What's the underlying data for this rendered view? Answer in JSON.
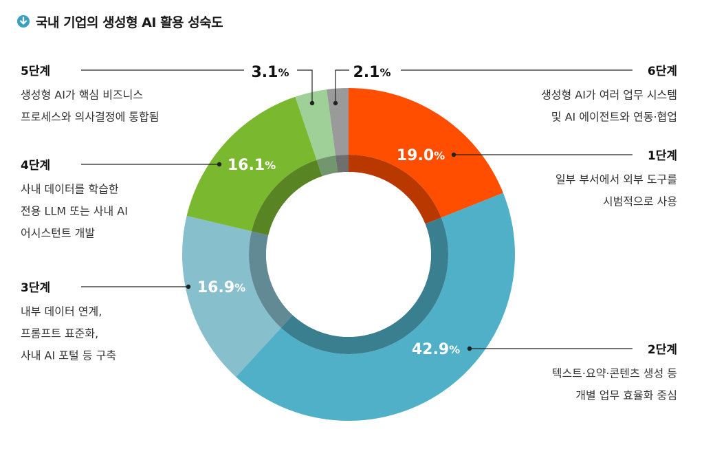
{
  "title": "국내 기업의 생성형 AI 활용 성숙도",
  "icon": "down-arrow-circle-icon",
  "colors": {
    "accent": "#3aa0c0",
    "stage1": "#ff4e00",
    "stage2": "#4fb0c8",
    "stage3": "#88bfcd",
    "stage4": "#7ab830",
    "stage5": "#9fd098",
    "stage6": "#9a9a9a"
  },
  "chart_data": {
    "type": "pie",
    "donut": true,
    "slices": [
      {
        "stage": "1단계",
        "value": 19.0,
        "pct_label": "19.0",
        "desc": [
          "일부 부서에서 외부 도구를",
          "시범적으로 사용"
        ]
      },
      {
        "stage": "2단계",
        "value": 42.9,
        "pct_label": "42.9",
        "desc": [
          "텍스트·요약·콘텐츠 생성 등",
          "개별 업무 효율화 중심"
        ]
      },
      {
        "stage": "3단계",
        "value": 16.9,
        "pct_label": "16.9",
        "desc": [
          "내부 데이터 연계,",
          "프롬프트 표준화,",
          "사내 AI 포털 등 구축"
        ]
      },
      {
        "stage": "4단계",
        "value": 16.1,
        "pct_label": "16.1",
        "desc": [
          "사내 데이터를 학습한",
          "전용 LLM 또는 사내 AI",
          "어시스턴트 개발"
        ]
      },
      {
        "stage": "5단계",
        "value": 3.1,
        "pct_label": "3.1",
        "desc": [
          "생성형 AI가 핵심 비즈니스",
          "프로세스와 의사결정에 통합됨"
        ]
      },
      {
        "stage": "6단계",
        "value": 2.1,
        "pct_label": "2.1",
        "desc": [
          "생성형 AI가 여러 업무 시스템",
          "및 AI 에이전트와 연동·협업"
        ]
      }
    ],
    "percent_sign": "%"
  }
}
